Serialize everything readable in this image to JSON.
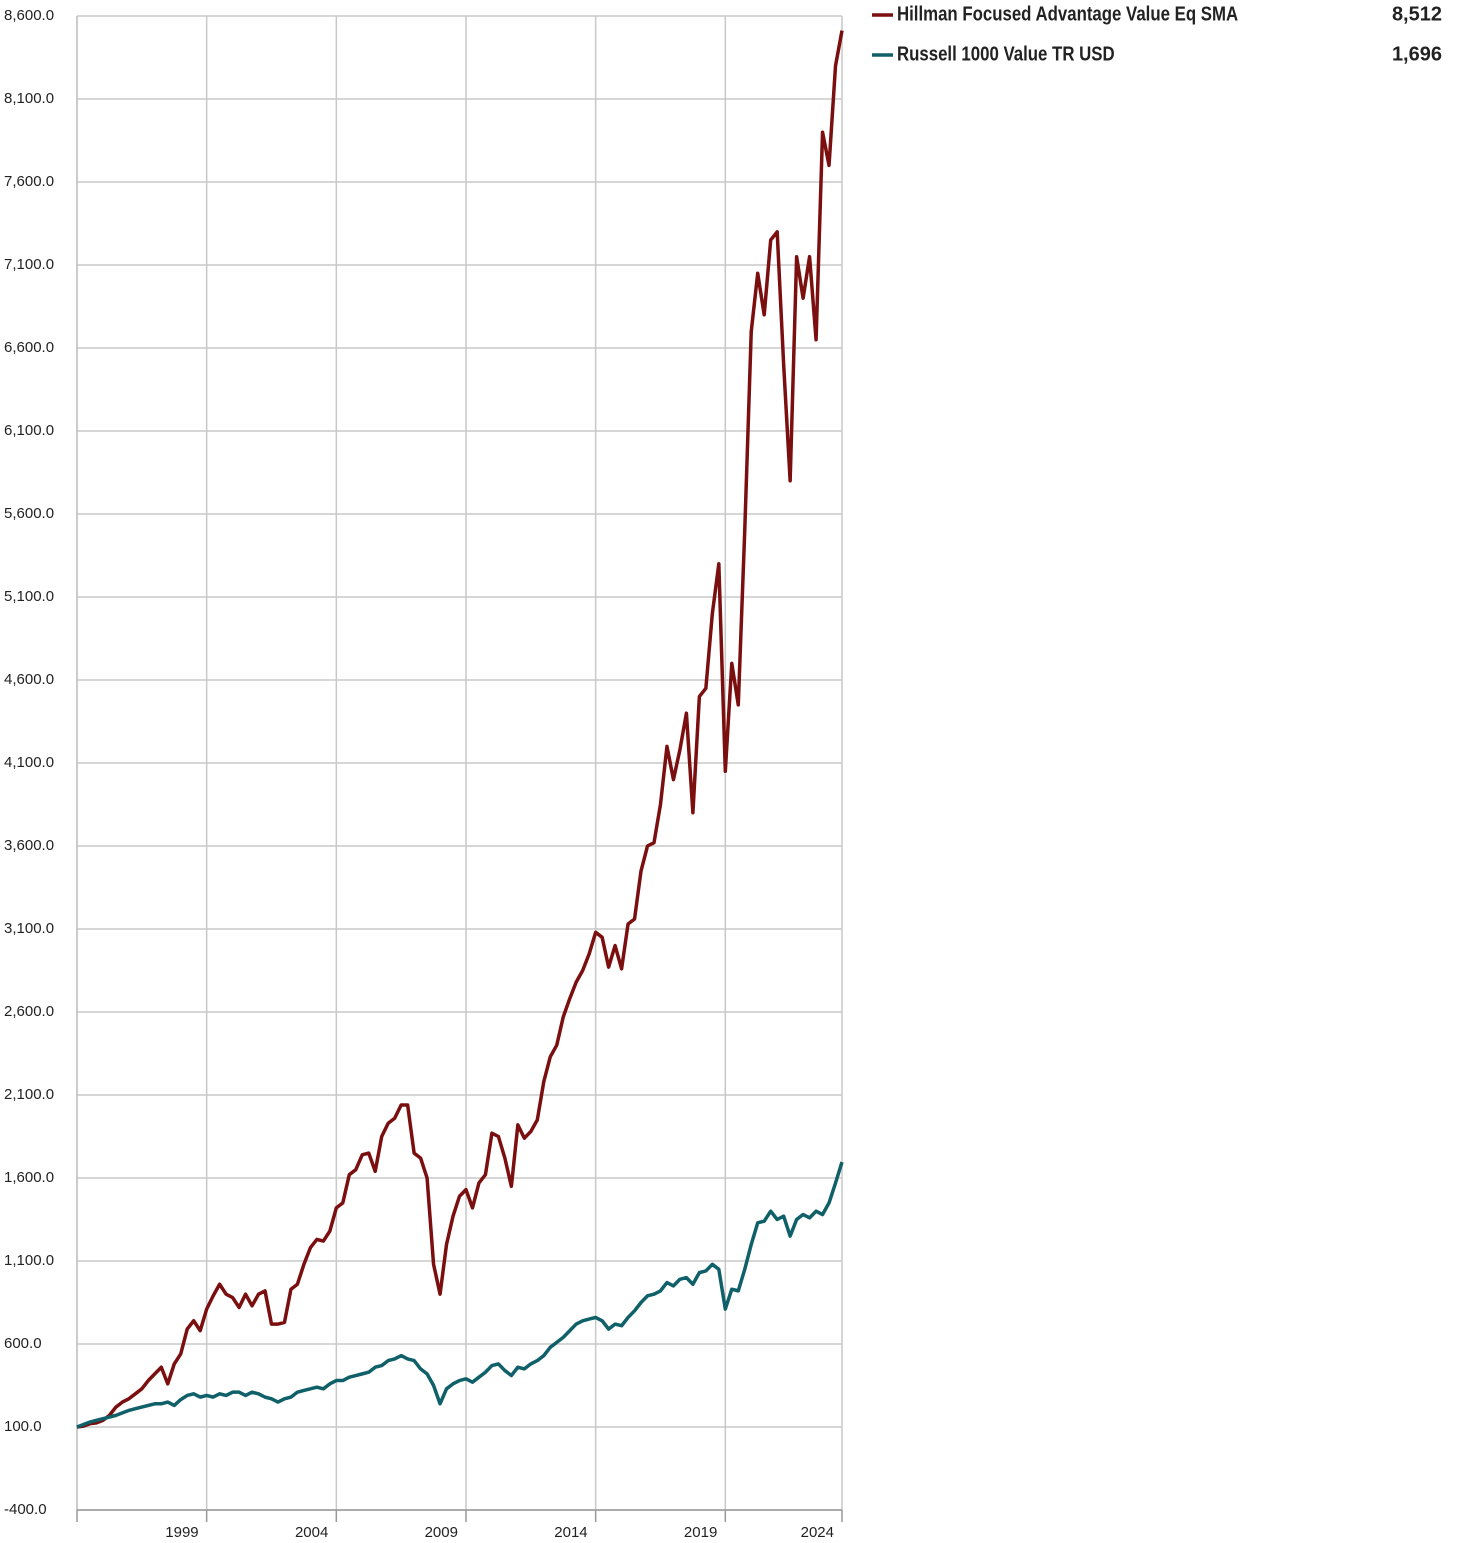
{
  "chart_data": {
    "type": "line",
    "categories": [
      null,
      null,
      null,
      null,
      null,
      null,
      null,
      null,
      null,
      null,
      null,
      null,
      null,
      null,
      null,
      null,
      null,
      null,
      null,
      null,
      "1999",
      null,
      null,
      null,
      null,
      null,
      null,
      null,
      null,
      null,
      null,
      null,
      null,
      null,
      null,
      null,
      null,
      null,
      null,
      null,
      "2004",
      null,
      null,
      null,
      null,
      null,
      null,
      null,
      null,
      null,
      null,
      null,
      null,
      null,
      null,
      null,
      null,
      null,
      null,
      null,
      "2009",
      null,
      null,
      null,
      null,
      null,
      null,
      null,
      null,
      null,
      null,
      null,
      null,
      null,
      null,
      null,
      null,
      null,
      null,
      null,
      "2014",
      null,
      null,
      null,
      null,
      null,
      null,
      null,
      null,
      null,
      null,
      null,
      null,
      null,
      null,
      null,
      null,
      null,
      null,
      null,
      "2019",
      null,
      null,
      null,
      null,
      null,
      null,
      null,
      null,
      null,
      null,
      null,
      null,
      null,
      null,
      null,
      null,
      null,
      "2024"
    ],
    "series": [
      {
        "name": "Hillman Focused Advantage Value Eq SMA",
        "color": "#7b0f0f",
        "legend_value": "8,512",
        "values": [
          100,
          105,
          120,
          125,
          140,
          170,
          220,
          250,
          270,
          300,
          330,
          380,
          420,
          460,
          360,
          480,
          540,
          690,
          740,
          680,
          810,
          890,
          960,
          900,
          880,
          820,
          900,
          830,
          900,
          920,
          720,
          720,
          730,
          930,
          960,
          1080,
          1180,
          1230,
          1220,
          1280,
          1420,
          1450,
          1620,
          1650,
          1740,
          1750,
          1640,
          1850,
          1930,
          1960,
          2040,
          2040,
          1750,
          1720,
          1600,
          1080,
          900,
          1200,
          1370,
          1490,
          1530,
          1420,
          1570,
          1620,
          1870,
          1850,
          1720,
          1550,
          1920,
          1840,
          1880,
          1950,
          2180,
          2330,
          2400,
          2570,
          2680,
          2780,
          2850,
          2950,
          3080,
          3050,
          2870,
          3000,
          2860,
          3130,
          3160,
          3450,
          3600,
          3620,
          3850,
          4200,
          4000,
          4180,
          4400,
          3800,
          4500,
          4550,
          5000,
          5300,
          4050,
          4700,
          4450,
          5500,
          6700,
          7050,
          6800,
          7250,
          7300,
          6500,
          5800,
          7150,
          6900,
          7150,
          6650,
          7900,
          7700,
          8300,
          8512
        ]
      },
      {
        "name": "Russell 1000 Value TR USD",
        "color": "#0f6068",
        "legend_value": "1,696",
        "values": [
          100,
          115,
          130,
          140,
          150,
          160,
          170,
          185,
          200,
          210,
          220,
          230,
          240,
          240,
          250,
          230,
          265,
          290,
          300,
          280,
          290,
          280,
          300,
          290,
          310,
          310,
          290,
          310,
          300,
          280,
          270,
          250,
          270,
          280,
          310,
          320,
          330,
          340,
          330,
          360,
          380,
          380,
          400,
          410,
          420,
          430,
          460,
          470,
          500,
          510,
          530,
          510,
          500,
          450,
          420,
          350,
          240,
          330,
          360,
          380,
          390,
          370,
          400,
          430,
          470,
          480,
          440,
          410,
          460,
          450,
          480,
          500,
          530,
          580,
          610,
          640,
          680,
          720,
          740,
          750,
          760,
          740,
          690,
          720,
          710,
          760,
          800,
          850,
          890,
          900,
          920,
          970,
          950,
          990,
          1000,
          960,
          1030,
          1040,
          1080,
          1050,
          810,
          930,
          920,
          1050,
          1200,
          1330,
          1340,
          1400,
          1350,
          1370,
          1250,
          1350,
          1380,
          1360,
          1400,
          1380,
          1450,
          1570,
          1696
        ]
      }
    ],
    "ylim": [
      -400,
      8600
    ],
    "yticks": [
      {
        "value": -400,
        "label": "-400.0"
      },
      {
        "value": 100,
        "label": "100.0"
      },
      {
        "value": 600,
        "label": "600.0"
      },
      {
        "value": 1100,
        "label": "1,100.0"
      },
      {
        "value": 1600,
        "label": "1,600.0"
      },
      {
        "value": 2100,
        "label": "2,100.0"
      },
      {
        "value": 2600,
        "label": "2,600.0"
      },
      {
        "value": 3100,
        "label": "3,100.0"
      },
      {
        "value": 3600,
        "label": "3,600.0"
      },
      {
        "value": 4100,
        "label": "4,100.0"
      },
      {
        "value": 4600,
        "label": "4,600.0"
      },
      {
        "value": 5100,
        "label": "5,100.0"
      },
      {
        "value": 5600,
        "label": "5,600.0"
      },
      {
        "value": 6100,
        "label": "6,100.0"
      },
      {
        "value": 6600,
        "label": "6,600.0"
      },
      {
        "value": 7100,
        "label": "7,100.0"
      },
      {
        "value": 7600,
        "label": "7,600.0"
      },
      {
        "value": 8100,
        "label": "8,100.0"
      },
      {
        "value": 8600,
        "label": "8,600.0"
      }
    ],
    "grid": true,
    "legend": "top-right"
  }
}
